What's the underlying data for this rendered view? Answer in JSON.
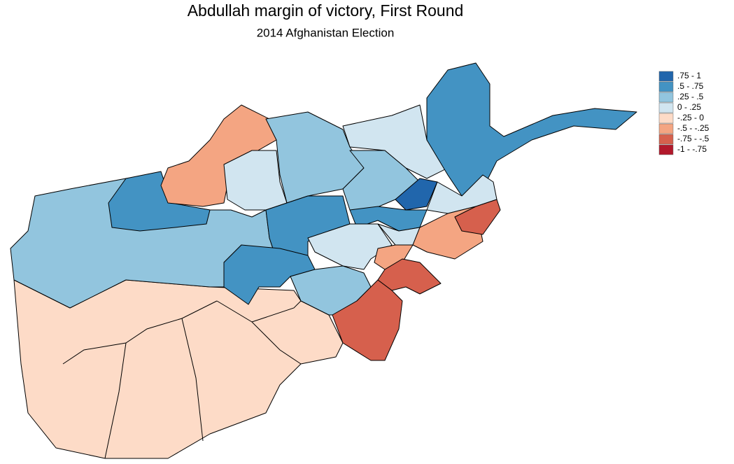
{
  "title": "Abdullah margin of victory, First Round",
  "subtitle": "2014 Afghanistan Election",
  "legend": [
    {
      "label": ".75 - 1",
      "color": "#2166ac"
    },
    {
      "label": ".5 - .75",
      "color": "#4393c3"
    },
    {
      "label": ".25 - .5",
      "color": "#92c5de"
    },
    {
      "label": "0 - .25",
      "color": "#d1e5f0"
    },
    {
      "label": "-.25 - 0",
      "color": "#fddbc7"
    },
    {
      "label": "-.5 - -.25",
      "color": "#f4a582"
    },
    {
      "label": "-.75 - -.5",
      "color": "#d6604d"
    },
    {
      "label": "-1 - -.75",
      "color": "#b2182b"
    }
  ]
}
